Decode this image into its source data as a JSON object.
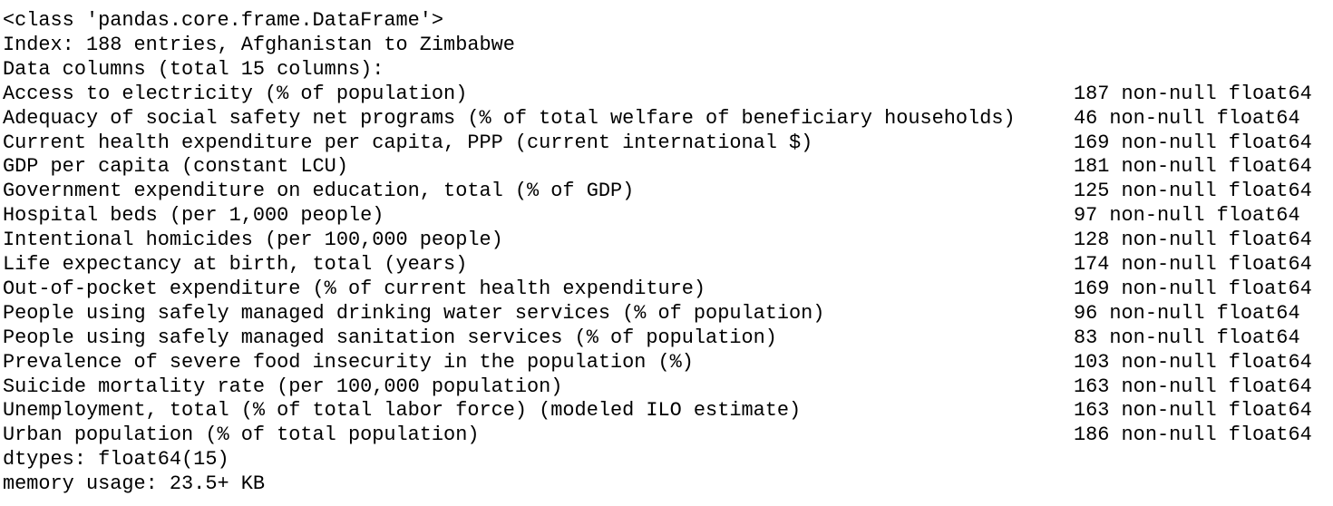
{
  "header": {
    "class_line": "<class 'pandas.core.frame.DataFrame'>",
    "index_line": "Index: 188 entries, Afghanistan to Zimbabwe",
    "columns_line": "Data columns (total 15 columns):"
  },
  "non_null_label": "non-null",
  "columns": [
    {
      "name": "Access to electricity (% of population)",
      "count": 187,
      "dtype": "float64"
    },
    {
      "name": "Adequacy of social safety net programs (% of total welfare of beneficiary households)",
      "count": 46,
      "dtype": "float64"
    },
    {
      "name": "Current health expenditure per capita, PPP (current international $)",
      "count": 169,
      "dtype": "float64"
    },
    {
      "name": "GDP per capita (constant LCU)",
      "count": 181,
      "dtype": "float64"
    },
    {
      "name": "Government expenditure on education, total (% of GDP)",
      "count": 125,
      "dtype": "float64"
    },
    {
      "name": "Hospital beds (per 1,000 people)",
      "count": 97,
      "dtype": "float64"
    },
    {
      "name": "Intentional homicides (per 100,000 people)",
      "count": 128,
      "dtype": "float64"
    },
    {
      "name": "Life expectancy at birth, total (years)",
      "count": 174,
      "dtype": "float64"
    },
    {
      "name": "Out-of-pocket expenditure (% of current health expenditure)",
      "count": 169,
      "dtype": "float64"
    },
    {
      "name": "People using safely managed drinking water services (% of population)",
      "count": 96,
      "dtype": "float64"
    },
    {
      "name": "People using safely managed sanitation services (% of population)",
      "count": 83,
      "dtype": "float64"
    },
    {
      "name": "Prevalence of severe food insecurity in the population (%)",
      "count": 103,
      "dtype": "float64"
    },
    {
      "name": "Suicide mortality rate (per 100,000 population)",
      "count": 163,
      "dtype": "float64"
    },
    {
      "name": "Unemployment, total (% of total labor force) (modeled ILO estimate)",
      "count": 163,
      "dtype": "float64"
    },
    {
      "name": "Urban population (% of total population)",
      "count": 186,
      "dtype": "float64"
    }
  ],
  "footer": {
    "dtypes_line": "dtypes: float64(15)",
    "memory_line": "memory usage: 23.5+ KB"
  }
}
